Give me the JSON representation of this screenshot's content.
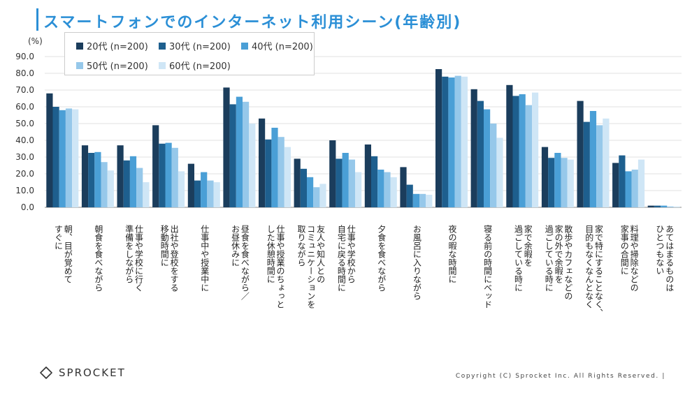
{
  "page": {
    "title": "スマートフォンでのインターネット利用シーン(年齢別)",
    "logo_text": "SPROCKET",
    "copyright": "Copyright (C) Sprocket Inc. All Rights Reserved. |"
  },
  "chart_data": {
    "type": "bar",
    "title": "スマートフォンでのインターネット利用シーン(年齢別)",
    "ylabel": "(%)",
    "xlabel": "",
    "ylim": [
      0,
      90
    ],
    "yticks": [
      "0.0",
      "10.0",
      "20.0",
      "30.0",
      "40.0",
      "50.0",
      "60.0",
      "70.0",
      "80.0",
      "90.0"
    ],
    "grid": true,
    "legend_position": "top-left",
    "categories": [
      "朝、目が覚めて\nすぐに",
      "朝食を食べながら",
      "仕事や学校に行く\n準備をしながら",
      "出社や登校をする\n移動時間に",
      "仕事中や授業中に",
      "昼食を食べながら／\nお昼休みに",
      "仕事や授業のちょっと\nした休憩時間に",
      "友人や知人との\nコミュニケーションを\n取りながら",
      "仕事や学校から\n自宅に戻る時間に",
      "夕食を食べながら",
      "お風呂に入りながら",
      "夜の暇な時間に",
      "寝る前の時間にベッド",
      "家で余暇を\n過ごしている時に",
      "散歩やカフェなどの\n家の外で余暇を\n過ごしている時に",
      "家で特にすることなく、\n目的もなくなんとなく",
      "料理や掃除などの\n家事の合間に",
      "あてはまるものは\nひとつもない"
    ],
    "series": [
      {
        "name": "20代 (n=200)",
        "color": "#1b3d5c",
        "values": [
          68,
          37,
          37,
          49,
          26,
          71.5,
          53,
          29,
          40,
          37.5,
          24,
          82.5,
          70.5,
          73,
          36,
          63.5,
          26.5,
          1
        ]
      },
      {
        "name": "30代 (n=200)",
        "color": "#1e5f8e",
        "values": [
          60,
          32.5,
          28,
          38,
          16,
          61.5,
          40.5,
          23,
          29,
          30.5,
          13.5,
          78,
          63.5,
          66.5,
          29.5,
          51,
          31,
          1
        ]
      },
      {
        "name": "40代 (n=200)",
        "color": "#4a9fd6",
        "values": [
          58,
          33,
          30.5,
          38.5,
          21,
          66,
          47.5,
          18,
          32.5,
          22.5,
          8,
          77.5,
          58.5,
          67.5,
          32.5,
          57.5,
          21.5,
          1
        ]
      },
      {
        "name": "50代 (n=200)",
        "color": "#96c8ea",
        "values": [
          59,
          27,
          23.5,
          35.5,
          16,
          63,
          42,
          12,
          28.5,
          21,
          8,
          78.5,
          50,
          61,
          29.5,
          49,
          22.5,
          0.5
        ]
      },
      {
        "name": "60代 (n=200)",
        "color": "#cfe6f6",
        "values": [
          58.5,
          22,
          15,
          21.5,
          15,
          50,
          36,
          14,
          21,
          18,
          7.5,
          78,
          41.5,
          68.5,
          28.5,
          53,
          28.5,
          0.5
        ]
      }
    ]
  }
}
